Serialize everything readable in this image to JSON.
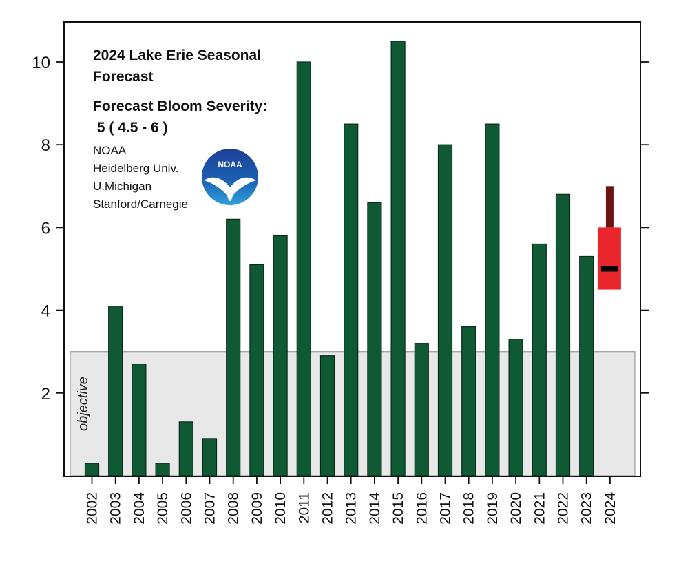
{
  "chart_data": {
    "type": "bar",
    "title_lines": [
      "2024 Lake Erie Seasonal",
      "Forecast"
    ],
    "forecast_label": "Forecast Bloom Severity:",
    "forecast_value_text": " 5 ( 4.5 - 6 )",
    "contributors": [
      "NOAA",
      "Heidelberg Univ.",
      "U.Michigan",
      "Stanford/Carnegie"
    ],
    "logo_text": "NOAA",
    "categories": [
      "2002",
      "2003",
      "2004",
      "2005",
      "2006",
      "2007",
      "2008",
      "2009",
      "2010",
      "2011",
      "2012",
      "2013",
      "2014",
      "2015",
      "2016",
      "2017",
      "2018",
      "2019",
      "2020",
      "2021",
      "2022",
      "2023"
    ],
    "values": [
      0.3,
      4.1,
      2.7,
      0.3,
      1.3,
      0.9,
      6.2,
      5.1,
      5.8,
      10.0,
      2.9,
      8.5,
      6.6,
      10.5,
      3.2,
      8.0,
      3.6,
      8.5,
      3.3,
      5.6,
      6.8,
      5.3
    ],
    "forecast": {
      "year": "2024",
      "estimate": 5,
      "low": 4.5,
      "high": 6,
      "max_possible": 7
    },
    "objective": {
      "label": "objective",
      "max": 3
    },
    "yticks": [
      2,
      4,
      6,
      8,
      10
    ],
    "ylim": [
      0,
      11
    ],
    "xlabel": "",
    "ylabel": "",
    "colors": {
      "bar": "#0f5a35",
      "bar_edge": "#0a2a18",
      "forecast_range": "#e8262b",
      "forecast_extension": "#6a1411",
      "forecast_mark": "#000000",
      "objective_band": "#e8e8e8",
      "logo_blue": "#1b3f95",
      "logo_light": "#2e9ad8"
    }
  }
}
